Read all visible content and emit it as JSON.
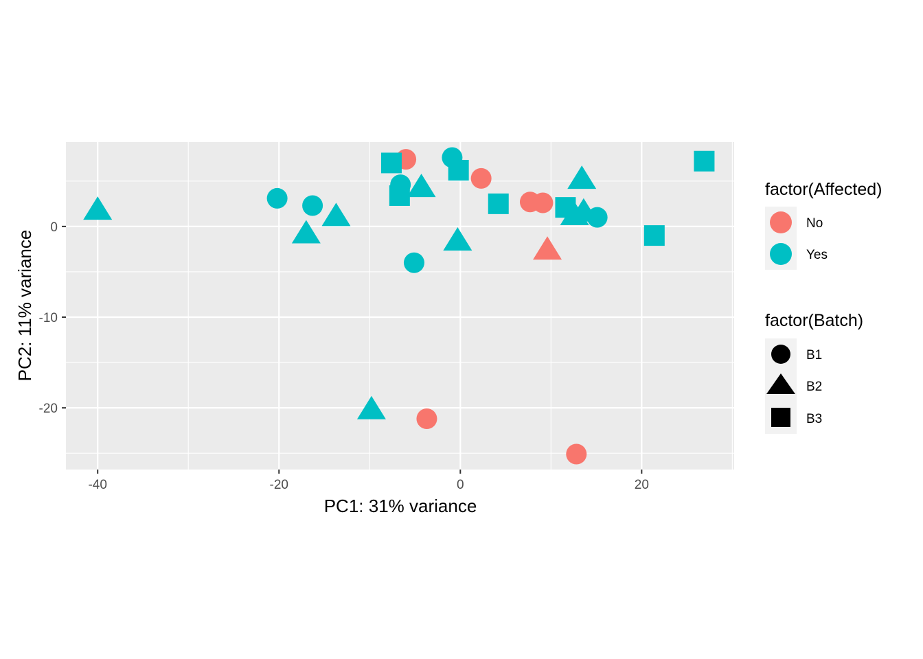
{
  "chart_data": {
    "type": "scatter",
    "xlabel": "PC1: 31% variance",
    "ylabel": "PC2: 11% variance",
    "xlim": [
      -43.5,
      30.2
    ],
    "ylim": [
      -26.8,
      9.3
    ],
    "x_ticks": [
      -40,
      -20,
      0,
      20
    ],
    "y_ticks": [
      0,
      -10,
      -20
    ],
    "grid": true,
    "legend_position": "right",
    "legends": [
      {
        "title": "factor(Affected)",
        "kind": "color",
        "entries": [
          {
            "label": "No",
            "color": "#F8766D"
          },
          {
            "label": "Yes",
            "color": "#00BFC4"
          }
        ]
      },
      {
        "title": "factor(Batch)",
        "kind": "shape",
        "entries": [
          {
            "label": "B1",
            "shape": "circle"
          },
          {
            "label": "B2",
            "shape": "triangle"
          },
          {
            "label": "B3",
            "shape": "square"
          }
        ]
      }
    ],
    "colors": {
      "No": "#F8766D",
      "Yes": "#00BFC4"
    },
    "points": [
      {
        "x": -6.0,
        "y": 7.4,
        "affected": "No",
        "batch": "B1"
      },
      {
        "x": 2.3,
        "y": 5.3,
        "affected": "No",
        "batch": "B1"
      },
      {
        "x": 7.7,
        "y": 2.7,
        "affected": "No",
        "batch": "B1"
      },
      {
        "x": 9.1,
        "y": 2.6,
        "affected": "No",
        "batch": "B1"
      },
      {
        "x": -3.7,
        "y": -21.2,
        "affected": "No",
        "batch": "B1"
      },
      {
        "x": 12.8,
        "y": -25.1,
        "affected": "No",
        "batch": "B1"
      },
      {
        "x": 9.6,
        "y": -2.6,
        "affected": "No",
        "batch": "B2"
      },
      {
        "x": -20.2,
        "y": 3.1,
        "affected": "Yes",
        "batch": "B1"
      },
      {
        "x": -16.3,
        "y": 2.3,
        "affected": "Yes",
        "batch": "B1"
      },
      {
        "x": -6.6,
        "y": 4.6,
        "affected": "Yes",
        "batch": "B1"
      },
      {
        "x": -0.9,
        "y": 7.6,
        "affected": "Yes",
        "batch": "B1"
      },
      {
        "x": -5.1,
        "y": -4.0,
        "affected": "Yes",
        "batch": "B1"
      },
      {
        "x": 15.1,
        "y": 1.0,
        "affected": "Yes",
        "batch": "B1"
      },
      {
        "x": -40.0,
        "y": 1.8,
        "affected": "Yes",
        "batch": "B2"
      },
      {
        "x": -17.0,
        "y": -0.8,
        "affected": "Yes",
        "batch": "B2"
      },
      {
        "x": -13.7,
        "y": 1.1,
        "affected": "Yes",
        "batch": "B2"
      },
      {
        "x": -4.3,
        "y": 4.3,
        "affected": "Yes",
        "batch": "B2"
      },
      {
        "x": -0.3,
        "y": -1.6,
        "affected": "Yes",
        "batch": "B2"
      },
      {
        "x": 13.4,
        "y": 5.2,
        "affected": "Yes",
        "batch": "B2"
      },
      {
        "x": 12.6,
        "y": 1.2,
        "affected": "Yes",
        "batch": "B2"
      },
      {
        "x": 13.6,
        "y": 1.6,
        "affected": "Yes",
        "batch": "B2"
      },
      {
        "x": -9.8,
        "y": -20.2,
        "affected": "Yes",
        "batch": "B2"
      },
      {
        "x": -7.6,
        "y": 7.0,
        "affected": "Yes",
        "batch": "B3"
      },
      {
        "x": -6.7,
        "y": 3.4,
        "affected": "Yes",
        "batch": "B3"
      },
      {
        "x": -0.2,
        "y": 6.2,
        "affected": "Yes",
        "batch": "B3"
      },
      {
        "x": 4.2,
        "y": 2.5,
        "affected": "Yes",
        "batch": "B3"
      },
      {
        "x": 11.6,
        "y": 2.1,
        "affected": "Yes",
        "batch": "B3"
      },
      {
        "x": 21.4,
        "y": -1.0,
        "affected": "Yes",
        "batch": "B3"
      },
      {
        "x": 26.9,
        "y": 7.2,
        "affected": "Yes",
        "batch": "B3"
      }
    ]
  }
}
